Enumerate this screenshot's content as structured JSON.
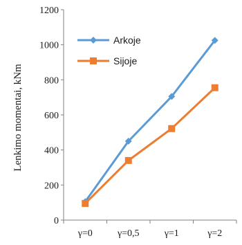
{
  "chart_data": {
    "type": "line",
    "categories": [
      "γ=0",
      "γ=0,5",
      "γ=1",
      "γ=2"
    ],
    "series": [
      {
        "name": "Arkoje",
        "values": [
          105,
          450,
          705,
          1025
        ],
        "color": "#5b9bd5",
        "marker": "diamond"
      },
      {
        "name": "Sijoje",
        "values": [
          95,
          340,
          522,
          755
        ],
        "color": "#ed7d31",
        "marker": "square"
      }
    ],
    "title": "",
    "xlabel": "",
    "ylabel": "Lenkimo momentai, kNm",
    "ylim": [
      0,
      1200
    ],
    "yticks": [
      0,
      200,
      400,
      600,
      800,
      1000,
      1200
    ],
    "grid": false,
    "legend_position": "top-left"
  }
}
